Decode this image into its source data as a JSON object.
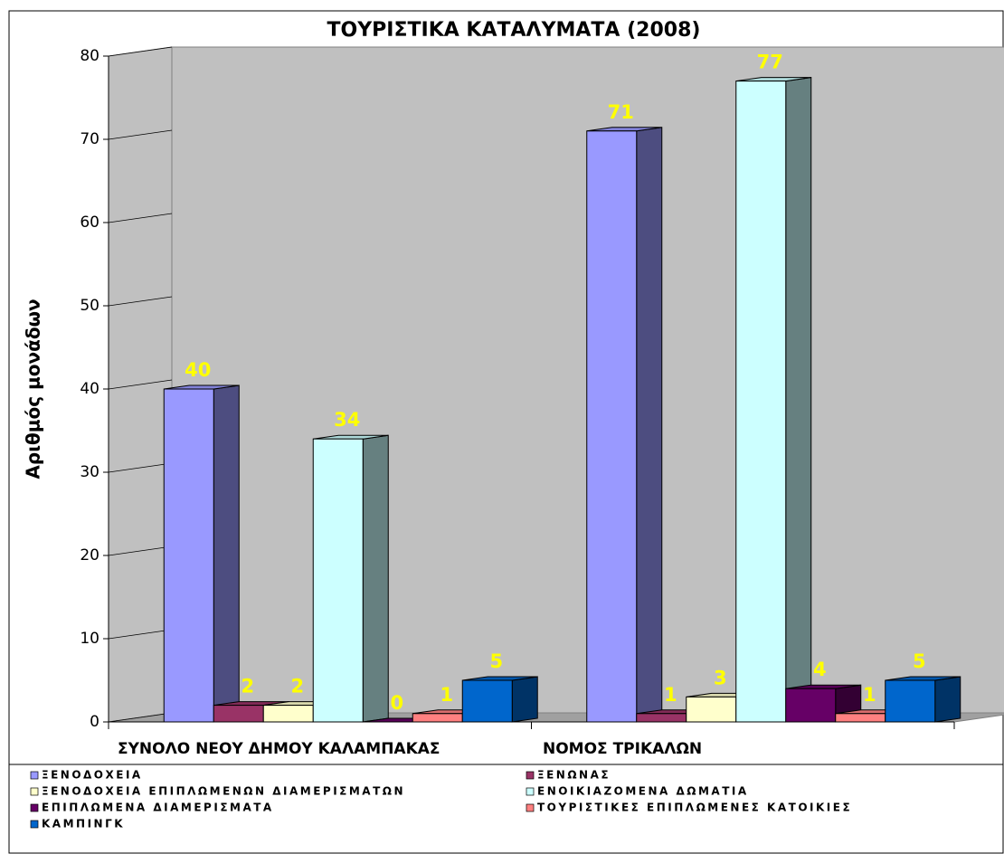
{
  "chart_data": {
    "type": "bar3d",
    "title": "ΤΟΥΡΙΣΤΙΚΑ ΚΑΤΑΛΥΜΑΤΑ (2008)",
    "y_label": "Αριθμός μονάδων",
    "categories": [
      "ΣΥΝΟΛΟ ΝΕΟΥ ΔΗΜΟΥ ΚΑΛΑΜΠΑΚΑΣ",
      "ΝΟΜΟΣ ΤΡΙΚΑΛΩΝ"
    ],
    "series": [
      {
        "name": "ΞΕΝΟΔΟΧΕΙΑ",
        "color": "#9999ff",
        "values": [
          40,
          71
        ]
      },
      {
        "name": "ΞΕΝΩΝΑΣ",
        "color": "#993366",
        "values": [
          2,
          1
        ]
      },
      {
        "name": "ΞΕΝΟΔΟΧΕΙΑ ΕΠΙΠΛΩΜΕΝΩΝ ΔΙΑΜΕΡΙΣΜΑΤΩΝ",
        "color": "#ffffcc",
        "values": [
          2,
          3
        ]
      },
      {
        "name": "ΕΝΟΙΚΙΑΖΟΜΕΝΑ ΔΩΜΑΤΙΑ",
        "color": "#ccffff",
        "values": [
          34,
          77
        ]
      },
      {
        "name": "ΕΠΙΠΛΩΜΕΝΑ ΔΙΑΜΕΡΙΣΜΑΤΑ",
        "color": "#660066",
        "values": [
          0,
          4
        ]
      },
      {
        "name": "ΤΟΥΡΙΣΤΙΚΕΣ ΕΠΙΠΛΩΜΕΝΕΣ ΚΑΤΟΙΚΙΕΣ",
        "color": "#ff8080",
        "values": [
          1,
          1
        ]
      },
      {
        "name": "ΚΑΜΠΙΝΓΚ",
        "color": "#0066cc",
        "values": [
          5,
          5
        ]
      }
    ],
    "ylim": [
      0,
      80
    ],
    "yticks": [
      0,
      10,
      20,
      30,
      40,
      50,
      60,
      70,
      80
    ],
    "wall_color": "#c0c0c0",
    "label_color": "#ffff00",
    "legend": "bottom"
  }
}
